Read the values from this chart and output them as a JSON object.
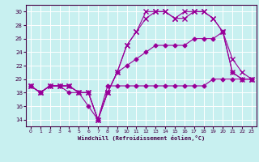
{
  "xlabel": "Windchill (Refroidissement éolien,°C)",
  "bg_color": "#c8f0f0",
  "grid_color": "#ffffff",
  "line_color": "#990099",
  "ylim": [
    13,
    31
  ],
  "xlim": [
    -0.5,
    23.5
  ],
  "yticks": [
    14,
    16,
    18,
    20,
    22,
    24,
    26,
    28,
    30
  ],
  "xticks": [
    0,
    1,
    2,
    3,
    4,
    5,
    6,
    7,
    8,
    9,
    10,
    11,
    12,
    13,
    14,
    15,
    16,
    17,
    18,
    19,
    20,
    21,
    22,
    23
  ],
  "lines": [
    {
      "x": [
        0,
        1,
        2,
        3,
        4,
        5,
        6,
        7,
        8,
        9,
        10,
        11,
        12,
        13,
        14,
        15,
        16,
        17,
        18,
        19,
        20,
        21,
        22,
        23
      ],
      "y": [
        19,
        18,
        19,
        19,
        19,
        18,
        18,
        14,
        19,
        19,
        19,
        19,
        19,
        19,
        19,
        19,
        19,
        19,
        19,
        20,
        20,
        20,
        20,
        20
      ],
      "marker": "D",
      "ms": 2.5,
      "lw": 0.8
    },
    {
      "x": [
        0,
        1,
        2,
        3,
        4,
        5,
        6,
        7,
        8,
        9,
        10,
        11,
        12,
        13,
        14,
        15,
        16,
        17,
        18,
        19,
        20,
        21,
        22,
        23
      ],
      "y": [
        19,
        18,
        19,
        19,
        18,
        18,
        16,
        14,
        18,
        21,
        22,
        23,
        24,
        25,
        25,
        25,
        25,
        26,
        26,
        26,
        27,
        21,
        20,
        20
      ],
      "marker": "D",
      "ms": 2.5,
      "lw": 0.8
    },
    {
      "x": [
        0,
        1,
        2,
        3,
        4,
        5,
        6,
        7,
        8,
        9,
        10,
        11,
        12,
        13,
        14,
        15,
        16,
        17,
        18,
        19,
        20,
        21,
        22,
        23
      ],
      "y": [
        19,
        18,
        19,
        19,
        19,
        18,
        18,
        14,
        18,
        21,
        25,
        27,
        29,
        30,
        30,
        29,
        29,
        30,
        30,
        29,
        27,
        23,
        21,
        20
      ],
      "marker": "x",
      "ms": 4,
      "lw": 0.8
    },
    {
      "x": [
        0,
        1,
        2,
        3,
        4,
        5,
        6,
        7,
        8,
        9,
        10,
        11,
        12,
        13,
        14,
        15,
        16,
        17,
        18,
        19,
        20,
        21,
        22,
        23
      ],
      "y": [
        19,
        18,
        19,
        19,
        19,
        18,
        18,
        14,
        18,
        21,
        25,
        27,
        30,
        30,
        30,
        29,
        30,
        30,
        30,
        29,
        27,
        21,
        20,
        20
      ],
      "marker": "x",
      "ms": 4,
      "lw": 0.8
    }
  ]
}
